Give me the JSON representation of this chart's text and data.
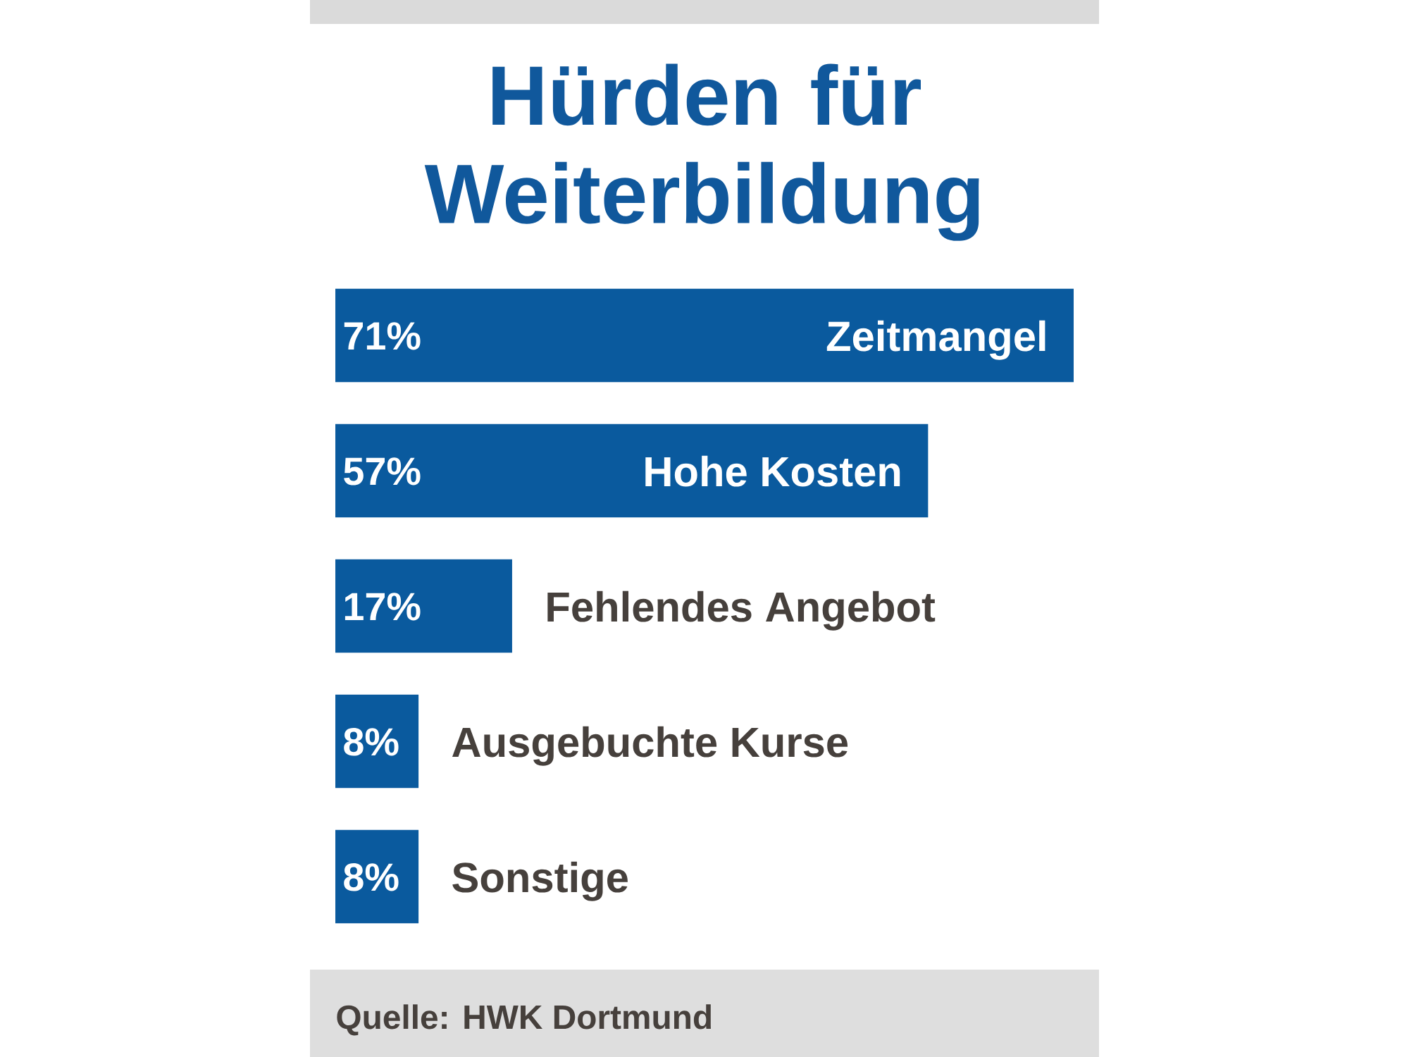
{
  "chart_data": {
    "type": "bar",
    "orientation": "horizontal",
    "title": "Hürden für Weiterbildung",
    "categories": [
      "Zeitmangel",
      "Hohe Kosten",
      "Fehlendes Angebot",
      "Ausgebuchte Kurse",
      "Sonstige"
    ],
    "values": [
      71,
      57,
      17,
      8,
      8
    ],
    "value_labels": [
      "71%",
      "57%",
      "17%",
      "8%",
      "8%"
    ],
    "color": "#0a5a9e",
    "annotations": [
      "Quelle: HWK Dortmund"
    ]
  }
}
